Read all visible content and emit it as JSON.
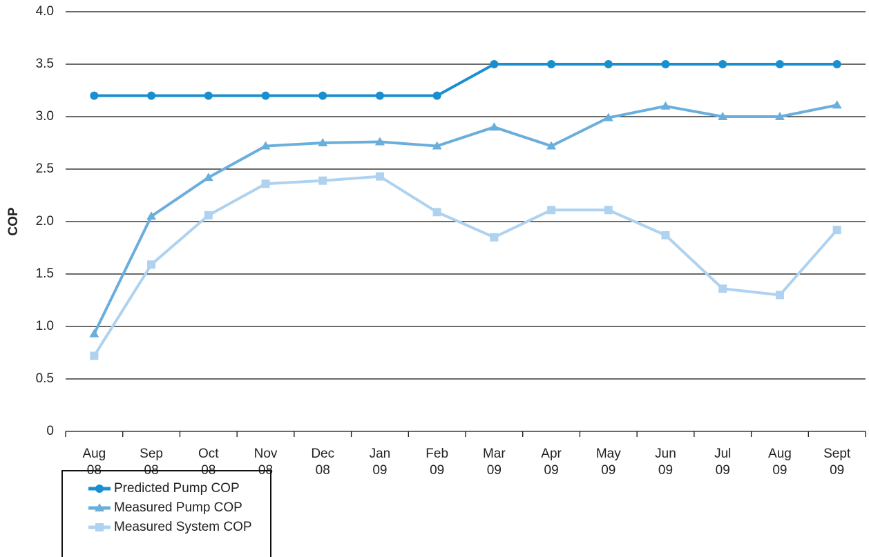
{
  "chart_data": {
    "type": "line",
    "y_label": "COP",
    "categories": [
      "Aug\n08",
      "Sep\n08",
      "Oct\n08",
      "Nov\n08",
      "Dec\n08",
      "Jan\n09",
      "Feb\n09",
      "Mar\n09",
      "Apr\n09",
      "May\n09",
      "Jun\n09",
      "Jul\n09",
      "Aug\n09",
      "Sept\n09"
    ],
    "series": [
      {
        "name": "Predicted Pump COP",
        "color": "#1a8fd0",
        "marker": "circle",
        "values": [
          3.2,
          3.2,
          3.2,
          3.2,
          3.2,
          3.2,
          3.2,
          3.5,
          3.5,
          3.5,
          3.5,
          3.5,
          3.5,
          3.5
        ]
      },
      {
        "name": "Measured Pump COP",
        "color": "#6aaedc",
        "marker": "triangle",
        "values": [
          0.93,
          2.05,
          2.42,
          2.72,
          2.75,
          2.76,
          2.72,
          2.9,
          2.72,
          2.99,
          3.1,
          3.0,
          3.0,
          3.11
        ]
      },
      {
        "name": "Measured System COP",
        "color": "#aed2ef",
        "marker": "square",
        "values": [
          0.72,
          1.59,
          2.06,
          2.36,
          2.39,
          2.43,
          2.09,
          1.85,
          2.11,
          2.11,
          1.87,
          1.36,
          1.3,
          1.92
        ]
      }
    ],
    "ylim": [
      0,
      4
    ],
    "yticks": [
      0,
      0.5,
      {
        "value": 1,
        "label": "1.0"
      },
      1.5,
      {
        "value": 2,
        "label": "2.0"
      },
      2.5,
      {
        "value": 3,
        "label": "3.0"
      },
      3.5,
      {
        "value": 4,
        "label": "4.0"
      }
    ],
    "grid": true,
    "legend": "bottom-left"
  }
}
